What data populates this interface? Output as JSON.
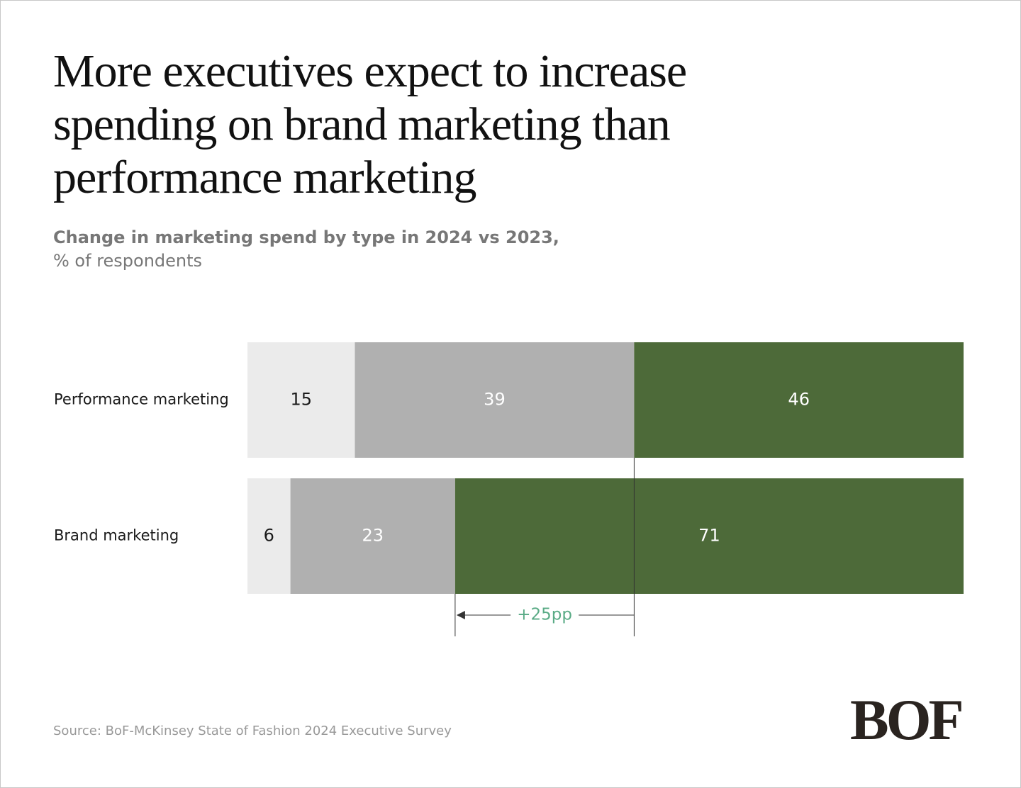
{
  "chart_data": {
    "type": "stacked-bar-horizontal",
    "title": "More executives expect to increase spending on brand marketing than performance marketing",
    "subtitle": "Change in marketing spend by type in 2024 vs 2023,",
    "unit": "% of respondents",
    "categories": [
      "Performance marketing",
      "Brand marketing"
    ],
    "series": [
      {
        "color": "#ebebeb",
        "label_color": "#1a1a1a",
        "values": [
          15,
          6
        ]
      },
      {
        "color": "#b0b0b0",
        "label_color": "#ffffff",
        "values": [
          39,
          23
        ]
      },
      {
        "color": "#4d6a39",
        "label_color": "#ffffff",
        "values": [
          46,
          71
        ]
      }
    ],
    "xlim": [
      0,
      100
    ],
    "annotation": "+25pp",
    "source": "Source: BoF-McKinsey State of Fashion 2024 Executive Survey",
    "logo": "BOF"
  }
}
